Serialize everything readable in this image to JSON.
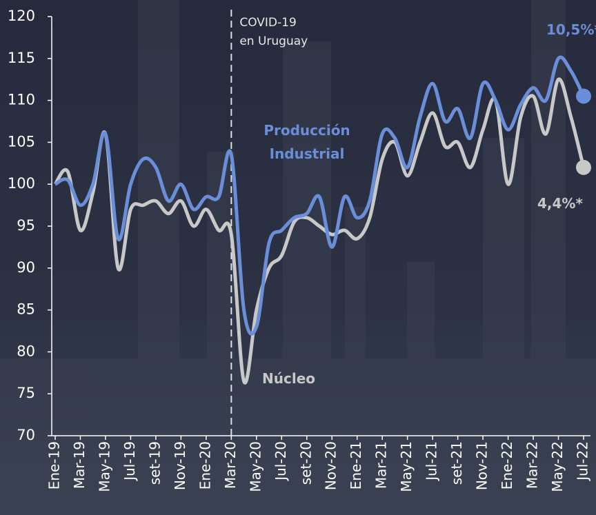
{
  "chart_data": {
    "type": "line",
    "categories": [
      "Ene-19",
      null,
      "Mar-19",
      null,
      "May-19",
      null,
      "Jul-19",
      null,
      "set-19",
      null,
      "Nov-19",
      null,
      "Ene-20",
      null,
      "Mar-20",
      null,
      "May-20",
      null,
      "Jul-20",
      null,
      "set-20",
      null,
      "Nov-20",
      null,
      "Ene-21",
      null,
      "Mar-21",
      null,
      "May-21",
      null,
      "Jul-21",
      null,
      "set-21",
      null,
      "Nov-21",
      null,
      "Ene-22",
      null,
      "Mar-22",
      null,
      "May-22",
      null,
      "Jul-22"
    ],
    "series": [
      {
        "name": "Producción Industrial",
        "color": "#6a8fd8",
        "end_label": "10,5%*",
        "values": [
          100,
          100.5,
          97.5,
          100,
          106,
          93.5,
          100,
          103,
          102,
          98,
          100,
          97,
          98.5,
          98.5,
          103.5,
          85,
          83,
          93,
          94.5,
          96,
          96.5,
          98.5,
          92.5,
          98.5,
          96,
          98,
          106,
          105.5,
          102,
          108,
          112,
          107.5,
          109,
          105.5,
          112,
          110,
          106.5,
          109.5,
          111.5,
          110,
          115,
          113.5,
          110.5
        ]
      },
      {
        "name": "Núcleo",
        "color": "#c8c8c8",
        "end_label": "4,4%*",
        "values": [
          100,
          101.5,
          94.5,
          99,
          106,
          90,
          97,
          97.5,
          98,
          96.5,
          98,
          95,
          97,
          94.5,
          94,
          76.5,
          85,
          90,
          91.5,
          95.5,
          96,
          95,
          94,
          94.5,
          93.5,
          96,
          103,
          105,
          101,
          105,
          108.5,
          104.5,
          105,
          102,
          106.5,
          110,
          100,
          108,
          110.5,
          106,
          112.5,
          108,
          102
        ]
      }
    ],
    "annotation": [
      "COVID-19",
      "en Uruguay"
    ],
    "annotation_category": 14,
    "ylim": [
      70,
      120
    ],
    "yticks": [
      70,
      75,
      80,
      85,
      90,
      95,
      100,
      105,
      110,
      115,
      120
    ]
  }
}
